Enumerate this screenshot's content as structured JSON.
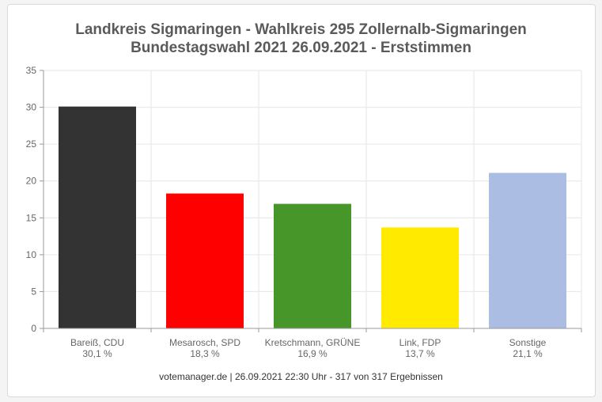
{
  "chart_data": {
    "type": "bar",
    "title_line1": "Landkreis Sigmaringen - Wahlkreis 295 Zollernalb-Sigmaringen",
    "title_line2": "Bundestagswahl 2021 26.09.2021  - Erststimmen",
    "categories": [
      "Bareiß, CDU",
      "Mesarosch, SPD",
      "Kretschmann, GRÜNE",
      "Link, FDP",
      "Sonstige"
    ],
    "value_labels": [
      "30,1 %",
      "18,3 %",
      "16,9 %",
      "13,7 %",
      "21,1 %"
    ],
    "values": [
      30.1,
      18.3,
      16.9,
      13.7,
      21.1
    ],
    "colors": [
      "#333333",
      "#ff0000",
      "#47962a",
      "#ffea00",
      "#abbde3"
    ],
    "ylim": [
      0,
      35
    ],
    "yticks": [
      0,
      5,
      10,
      15,
      20,
      25,
      30,
      35
    ],
    "grid": true,
    "xlabel": "",
    "ylabel": ""
  },
  "footer": "votemanager.de | 26.09.2021 22:30 Uhr - 317 von 317 Ergebnissen"
}
